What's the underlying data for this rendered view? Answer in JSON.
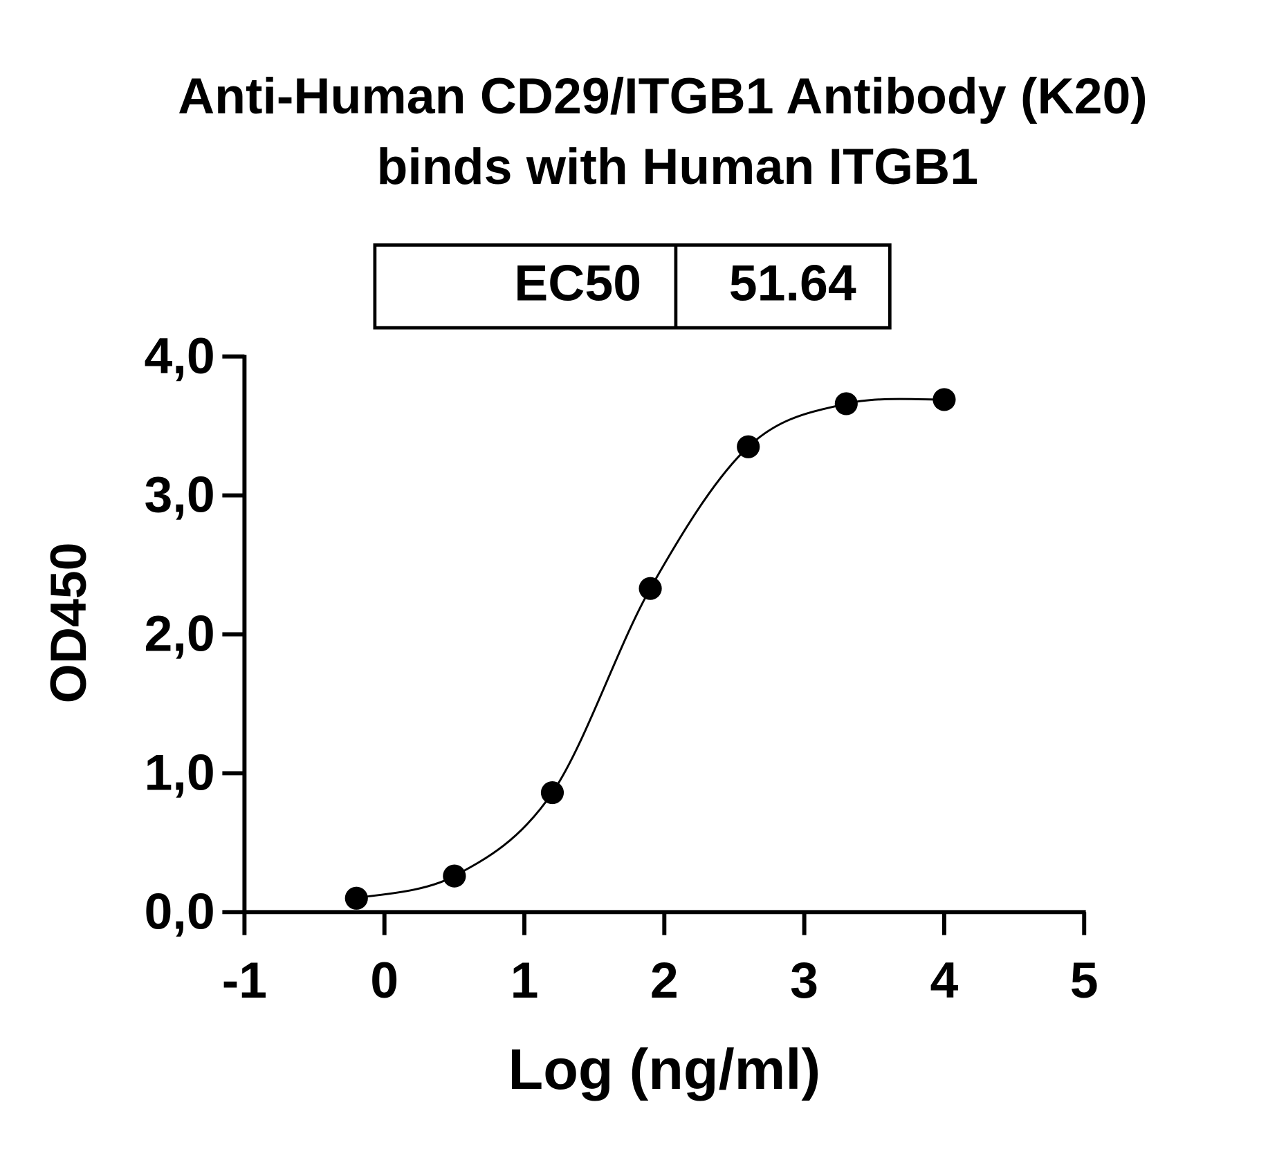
{
  "chart_data": {
    "type": "scatter",
    "title": [
      "Anti-Human CD29/ITGB1 Antibody (K20)",
      "binds with Human ITGB1"
    ],
    "ec50_table": {
      "label": "EC50",
      "value": 51.64
    },
    "x_label": "Log (ng/ml)",
    "y_label": "OD450",
    "x": [
      -0.2,
      0.5,
      1.2,
      1.9,
      2.6,
      3.3,
      4.0
    ],
    "values": [
      0.1,
      0.26,
      0.86,
      2.33,
      3.35,
      3.66,
      3.69
    ],
    "color": "#000000",
    "xlim": [
      -1,
      5
    ],
    "xticks": [
      -1,
      0,
      1,
      2,
      3,
      4,
      5
    ],
    "ylim": [
      0,
      4
    ],
    "yticks": [
      {
        "value": 0,
        "label": "0,0"
      },
      {
        "value": 1,
        "label": "1,0"
      },
      {
        "value": 2,
        "label": "2,0"
      },
      {
        "value": 3,
        "label": "3,0"
      },
      {
        "value": 4,
        "label": "4,0"
      }
    ],
    "fit_curve": true
  }
}
